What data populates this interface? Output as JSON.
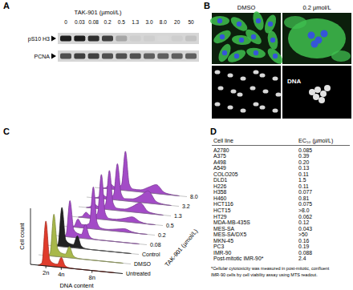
{
  "panel_labels": [
    "A",
    "B",
    "C",
    "D"
  ],
  "blot": {
    "title": "TAK-901 (µmol/L)",
    "lanes": [
      "0",
      "0.03",
      "0.08",
      "0.2",
      "0.5",
      "1.3",
      "3.0",
      "8.0",
      "20",
      "50"
    ],
    "rows": [
      {
        "name": "pS10 H3",
        "intensity": [
          0.9,
          0.9,
          0.85,
          0.8,
          0.45,
          0.3,
          0.3,
          0.25,
          0.3,
          0.35
        ]
      },
      {
        "name": "PCNA",
        "intensity": [
          0.75,
          0.8,
          0.8,
          0.75,
          0.75,
          0.75,
          0.7,
          0.7,
          0.7,
          0.7
        ]
      }
    ]
  },
  "micrographs": {
    "conditions": [
      "DMSO",
      "0.2 µmol/L"
    ],
    "stain": "DNA"
  },
  "chart_data": {
    "type": "area",
    "x_label": "DNA content",
    "y_label": "Cell count",
    "z_label": "TAK-901 (µmol/L)",
    "x": [
      1,
      1.5,
      2,
      2.5,
      3,
      3.5,
      4,
      4.5,
      5,
      6,
      7,
      8,
      9,
      10,
      11
    ],
    "xlim": [
      0,
      12
    ],
    "xticks": [
      {
        "value": 2,
        "label": "2n"
      },
      {
        "value": 4,
        "label": "4n"
      },
      {
        "value": 8,
        "label": "8n"
      }
    ],
    "ylim": [
      0,
      100
    ],
    "tick_labels": "x",
    "series": [
      {
        "name": "Untreated",
        "color": "#e03c2c",
        "values": [
          0,
          5,
          80,
          12,
          6,
          5,
          18,
          4,
          1,
          0,
          0,
          0,
          0,
          0,
          0
        ]
      },
      {
        "name": "DMSO",
        "color": "#a8b84a",
        "values": [
          0,
          4,
          75,
          14,
          7,
          6,
          20,
          5,
          1,
          0,
          0,
          0,
          0,
          0,
          0
        ]
      },
      {
        "name": "Control",
        "color": "#222222",
        "values": [
          0,
          4,
          70,
          13,
          7,
          6,
          22,
          5,
          1,
          0,
          0,
          0,
          0,
          0,
          0
        ]
      },
      {
        "name": "0.08",
        "color": "#a34bc7",
        "values": [
          0,
          4,
          65,
          14,
          8,
          7,
          25,
          6,
          1,
          0,
          0,
          0,
          0,
          0,
          0
        ]
      },
      {
        "name": "0.2",
        "color": "#a34bc7",
        "values": [
          0,
          2,
          15,
          6,
          6,
          10,
          75,
          12,
          3,
          2,
          4,
          6,
          2,
          0,
          0
        ]
      },
      {
        "name": "0.5",
        "color": "#a34bc7",
        "values": [
          0,
          2,
          10,
          5,
          5,
          10,
          80,
          12,
          3,
          3,
          6,
          10,
          3,
          0,
          0
        ]
      },
      {
        "name": "1.3",
        "color": "#a34bc7",
        "values": [
          0,
          2,
          8,
          4,
          4,
          9,
          70,
          12,
          4,
          4,
          10,
          18,
          4,
          1,
          0
        ]
      },
      {
        "name": "3.2",
        "color": "#a34bc7",
        "values": [
          0,
          2,
          8,
          4,
          4,
          9,
          65,
          12,
          4,
          5,
          12,
          22,
          5,
          1,
          0
        ]
      },
      {
        "name": "8.0",
        "color": "#a34bc7",
        "values": [
          0,
          2,
          10,
          5,
          5,
          10,
          70,
          12,
          4,
          4,
          10,
          16,
          4,
          1,
          0
        ]
      }
    ]
  },
  "table": {
    "header": [
      "Cell line",
      "EC₅₀ (µmol/L)"
    ],
    "rows": [
      [
        "A2780",
        "0.085"
      ],
      [
        "A375",
        "0.39"
      ],
      [
        "A498",
        "0.20"
      ],
      [
        "A549",
        "0.13"
      ],
      [
        "COLO205",
        "0.11"
      ],
      [
        "DLD1",
        "1.5"
      ],
      [
        "H226",
        "0.11"
      ],
      [
        "H358",
        "0.077"
      ],
      [
        "H460",
        "0.81"
      ],
      [
        "HCT116",
        "0.075"
      ],
      [
        "HCT15",
        ">8.0"
      ],
      [
        "HT29",
        "0.062"
      ],
      [
        "MDA-MB-435S",
        "0.12"
      ],
      [
        "MES-SA",
        "0.043"
      ],
      [
        "MES-SA/DX5",
        ">50"
      ],
      [
        "MKN-45",
        "0.16"
      ],
      [
        "PC3",
        "0.19"
      ],
      [
        "IMR-90",
        "0.088"
      ],
      [
        "Post-mitotic IMR-90*",
        "2.4"
      ]
    ],
    "footnote": [
      "*Cellular cytotoxicity was measured in post-mitotic, confluent",
      "IMR-90 cells by cell viability assay using MTS readout."
    ]
  }
}
